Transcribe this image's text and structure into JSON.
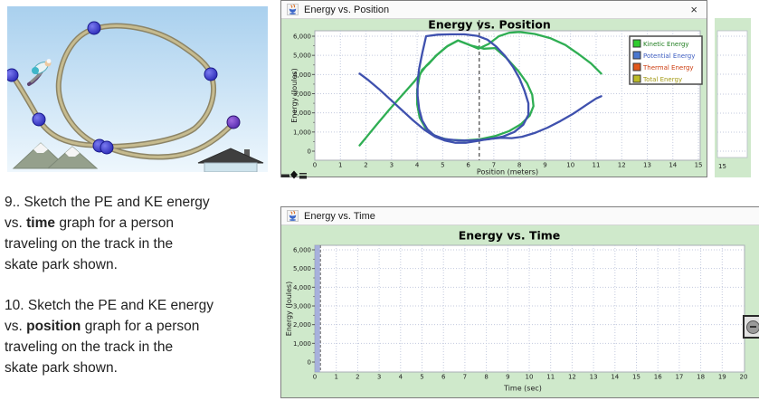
{
  "questions": [
    {
      "number": "9..",
      "line1": "Sketch the PE and KE energy",
      "vs": "vs.",
      "keyword": "time",
      "line2_rest": "graph for a person",
      "line3": "traveling on the track in the",
      "line4": "skate park shown."
    },
    {
      "number": "10.",
      "line1": "Sketch the PE and KE energy",
      "vs": "vs.",
      "keyword": "position",
      "line2_rest": "graph for a person",
      "line3": "traveling on the track in the",
      "line4": "skate park shown."
    }
  ],
  "skate_park_image": {
    "description_icons": [
      "skater-figure",
      "track",
      "track-control-point",
      "mountains",
      "house"
    ],
    "track_control_point_color": "#2d2db4",
    "sky_color": "#aed4f0"
  },
  "windows": {
    "position": {
      "titlebar_text": "Energy vs. Position",
      "app_icon": "java-coffee-cup-icon",
      "close_label": "×",
      "fragment_label": "15",
      "panel_color": "#cfe9cb"
    },
    "time": {
      "titlebar_text": "Energy vs. Time",
      "app_icon": "java-coffee-cup-icon",
      "zoom_button_icon": "magnifier-zoom-icon",
      "panel_color": "#cfe9cb"
    }
  },
  "chart_data": [
    {
      "type": "line",
      "title": "Energy vs. Position",
      "xlabel": "Position (meters)",
      "ylabel": "Energy (Joules)",
      "xlim": [
        0,
        15
      ],
      "ylim": [
        0,
        6240
      ],
      "xticks": [
        0,
        1,
        2,
        3,
        4,
        5,
        6,
        7,
        8,
        9,
        10,
        11,
        12,
        13,
        14,
        15
      ],
      "yticks": [
        0,
        1000,
        2000,
        3000,
        4000,
        5000,
        6000
      ],
      "grid": true,
      "legend_position": "top-right",
      "cursor_x": 6.43,
      "legend": [
        {
          "label": "Kinetic Energy",
          "swatch": "#2ecc2e",
          "text_color": "#1e7d1e"
        },
        {
          "label": "Potential Energy",
          "swatch": "#4a77cf",
          "text_color": "#3c5cc0"
        },
        {
          "label": "Thermal Energy",
          "swatch": "#e2581c",
          "text_color": "#cc3c0f"
        },
        {
          "label": "Total Energy",
          "swatch": "#bcbc28",
          "text_color": "#a39a14"
        }
      ],
      "series": [
        {
          "name": "Kinetic Energy",
          "color": "#2fae53",
          "closed": false,
          "points": [
            [
              1.75,
              300
            ],
            [
              2.0,
              700
            ],
            [
              2.4,
              1350
            ],
            [
              2.9,
              2150
            ],
            [
              3.4,
              2900
            ],
            [
              3.9,
              3650
            ],
            [
              4.35,
              4450
            ],
            [
              4.8,
              5050
            ],
            [
              5.2,
              5500
            ],
            [
              5.6,
              5780
            ],
            [
              6.0,
              5570
            ],
            [
              6.4,
              5350
            ],
            [
              6.8,
              5600
            ],
            [
              7.2,
              6000
            ],
            [
              7.6,
              6180
            ],
            [
              8.0,
              6220
            ],
            [
              8.6,
              6120
            ],
            [
              9.2,
              5900
            ],
            [
              9.8,
              5540
            ],
            [
              10.3,
              5080
            ],
            [
              10.8,
              4580
            ],
            [
              11.2,
              4050
            ]
          ]
        },
        {
          "name": "Kinetic Energy (loop)",
          "color": "#2fae53",
          "closed": true,
          "points": [
            [
              4.1,
              3950
            ],
            [
              4.0,
              3200
            ],
            [
              4.0,
              2450
            ],
            [
              4.1,
              1750
            ],
            [
              4.35,
              1150
            ],
            [
              4.75,
              750
            ],
            [
              5.25,
              590
            ],
            [
              5.85,
              560
            ],
            [
              6.45,
              620
            ],
            [
              7.05,
              790
            ],
            [
              7.6,
              1050
            ],
            [
              8.05,
              1400
            ],
            [
              8.4,
              1850
            ],
            [
              8.55,
              2350
            ],
            [
              8.5,
              2950
            ],
            [
              8.3,
              3550
            ],
            [
              7.95,
              4200
            ],
            [
              7.5,
              4850
            ],
            [
              7.05,
              5380
            ],
            [
              6.6,
              5350
            ],
            [
              6.1,
              5520
            ],
            [
              5.6,
              5780
            ],
            [
              5.15,
              5450
            ],
            [
              4.75,
              5000
            ],
            [
              4.45,
              4550
            ],
            [
              4.2,
              4250
            ]
          ]
        },
        {
          "name": "Potential Energy",
          "color": "#3f51ae",
          "closed": false,
          "points": [
            [
              1.75,
              4050
            ],
            [
              2.1,
              3700
            ],
            [
              2.5,
              3250
            ],
            [
              2.95,
              2700
            ],
            [
              3.4,
              2150
            ],
            [
              3.85,
              1600
            ],
            [
              4.3,
              1100
            ],
            [
              4.7,
              750
            ],
            [
              5.1,
              550
            ],
            [
              5.5,
              440
            ],
            [
              5.9,
              440
            ],
            [
              6.3,
              520
            ],
            [
              6.8,
              640
            ],
            [
              7.3,
              700
            ],
            [
              7.7,
              680
            ],
            [
              8.1,
              750
            ],
            [
              8.6,
              950
            ],
            [
              9.1,
              1230
            ],
            [
              9.6,
              1570
            ],
            [
              10.1,
              1950
            ],
            [
              10.6,
              2400
            ],
            [
              11.0,
              2750
            ],
            [
              11.2,
              2870
            ]
          ]
        },
        {
          "name": "Potential Energy (loop)",
          "color": "#3f51ae",
          "closed": true,
          "points": [
            [
              4.35,
              6000
            ],
            [
              4.8,
              6080
            ],
            [
              5.3,
              6100
            ],
            [
              5.85,
              6100
            ],
            [
              6.35,
              6020
            ],
            [
              6.75,
              5820
            ],
            [
              7.1,
              5450
            ],
            [
              7.45,
              4950
            ],
            [
              7.75,
              4400
            ],
            [
              8.0,
              3800
            ],
            [
              8.2,
              3150
            ],
            [
              8.35,
              2500
            ],
            [
              8.35,
              1900
            ],
            [
              8.15,
              1380
            ],
            [
              7.8,
              1000
            ],
            [
              7.35,
              760
            ],
            [
              6.8,
              620
            ],
            [
              6.2,
              560
            ],
            [
              5.6,
              560
            ],
            [
              5.05,
              640
            ],
            [
              4.65,
              840
            ],
            [
              4.4,
              1150
            ],
            [
              4.2,
              1600
            ],
            [
              4.08,
              2200
            ],
            [
              4.02,
              2900
            ],
            [
              4.02,
              3600
            ],
            [
              4.08,
              4300
            ],
            [
              4.2,
              5100
            ],
            [
              4.3,
              5700
            ]
          ]
        }
      ]
    },
    {
      "type": "line",
      "title": "Energy vs. Time",
      "xlabel": "Time (sec)",
      "ylabel": "Energy (Joules)",
      "xlim": [
        0,
        20
      ],
      "ylim": [
        0,
        6240
      ],
      "xticks": [
        0,
        1,
        2,
        3,
        4,
        5,
        6,
        7,
        8,
        9,
        10,
        11,
        12,
        13,
        14,
        15,
        16,
        17,
        18,
        19,
        20
      ],
      "yticks": [
        0,
        1000,
        2000,
        3000,
        4000,
        5000,
        6000
      ],
      "grid": true,
      "series": [],
      "time_cursor": {
        "from": 0,
        "to": 0.2
      }
    }
  ]
}
